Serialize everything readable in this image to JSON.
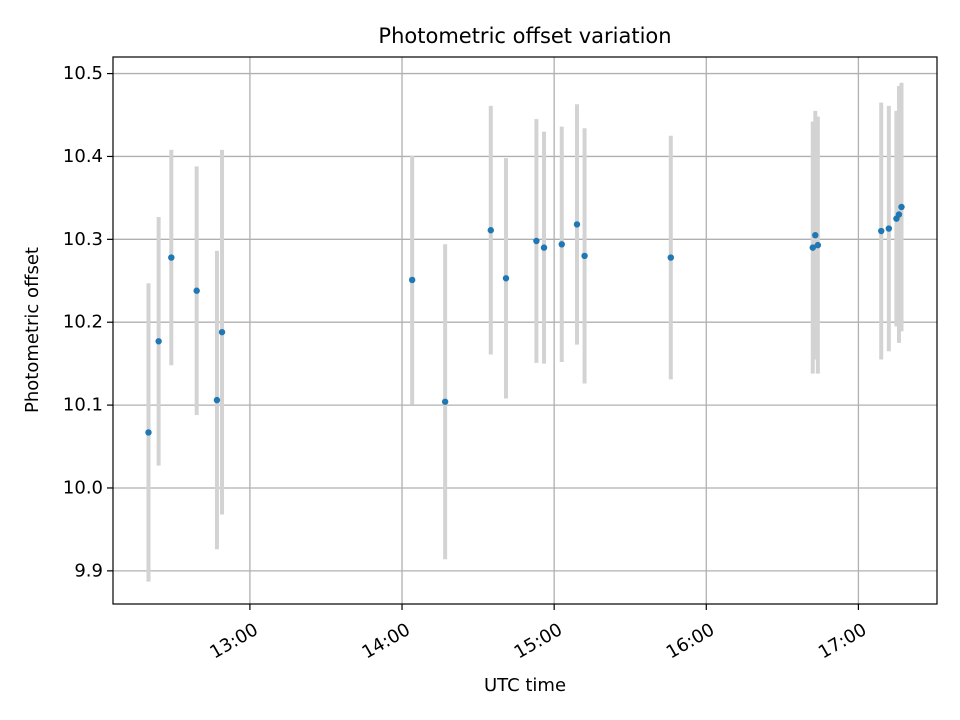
{
  "chart_data": {
    "type": "scatter",
    "title": "Photometric offset variation",
    "xlabel": "UTC time",
    "ylabel": "Photometric offset",
    "x_unit": "UTC time (hh:mm)",
    "xlim": [
      "12:06",
      "17:31"
    ],
    "ylim": [
      9.86,
      10.52
    ],
    "grid": true,
    "x_ticks": [
      "13:00",
      "14:00",
      "15:00",
      "16:00",
      "17:00"
    ],
    "y_ticks": [
      "9.9",
      "10.0",
      "10.1",
      "10.2",
      "10.3",
      "10.4",
      "10.5"
    ],
    "colors": {
      "marker": "#1f77b4",
      "errorbar": "#d3d3d3",
      "grid": "#b0b0b0"
    },
    "series": [
      {
        "points": [
          {
            "x": "12:20",
            "y": 10.067,
            "yerr": 0.18
          },
          {
            "x": "12:24",
            "y": 10.177,
            "yerr": 0.15
          },
          {
            "x": "12:29",
            "y": 10.278,
            "yerr": 0.13
          },
          {
            "x": "12:39",
            "y": 10.238,
            "yerr": 0.15
          },
          {
            "x": "12:47",
            "y": 10.106,
            "yerr": 0.18
          },
          {
            "x": "12:49",
            "y": 10.188,
            "yerr": 0.22
          },
          {
            "x": "14:04",
            "y": 10.251,
            "yerr": 0.15
          },
          {
            "x": "14:17",
            "y": 10.104,
            "yerr": 0.19
          },
          {
            "x": "14:35",
            "y": 10.311,
            "yerr": 0.15
          },
          {
            "x": "14:41",
            "y": 10.253,
            "yerr": 0.145
          },
          {
            "x": "14:53",
            "y": 10.298,
            "yerr": 0.147
          },
          {
            "x": "14:56",
            "y": 10.29,
            "yerr": 0.14
          },
          {
            "x": "15:03",
            "y": 10.294,
            "yerr": 0.142
          },
          {
            "x": "15:09",
            "y": 10.318,
            "yerr": 0.145
          },
          {
            "x": "15:12",
            "y": 10.28,
            "yerr": 0.154
          },
          {
            "x": "15:46",
            "y": 10.278,
            "yerr": 0.147
          },
          {
            "x": "16:42",
            "y": 10.29,
            "yerr": 0.152
          },
          {
            "x": "16:43",
            "y": 10.305,
            "yerr": 0.15
          },
          {
            "x": "16:44",
            "y": 10.293,
            "yerr": 0.155
          },
          {
            "x": "17:09",
            "y": 10.31,
            "yerr": 0.155
          },
          {
            "x": "17:12",
            "y": 10.313,
            "yerr": 0.148
          },
          {
            "x": "17:15",
            "y": 10.325,
            "yerr": 0.13
          },
          {
            "x": "17:16",
            "y": 10.33,
            "yerr": 0.155
          },
          {
            "x": "17:17",
            "y": 10.339,
            "yerr": 0.15
          }
        ]
      }
    ]
  }
}
